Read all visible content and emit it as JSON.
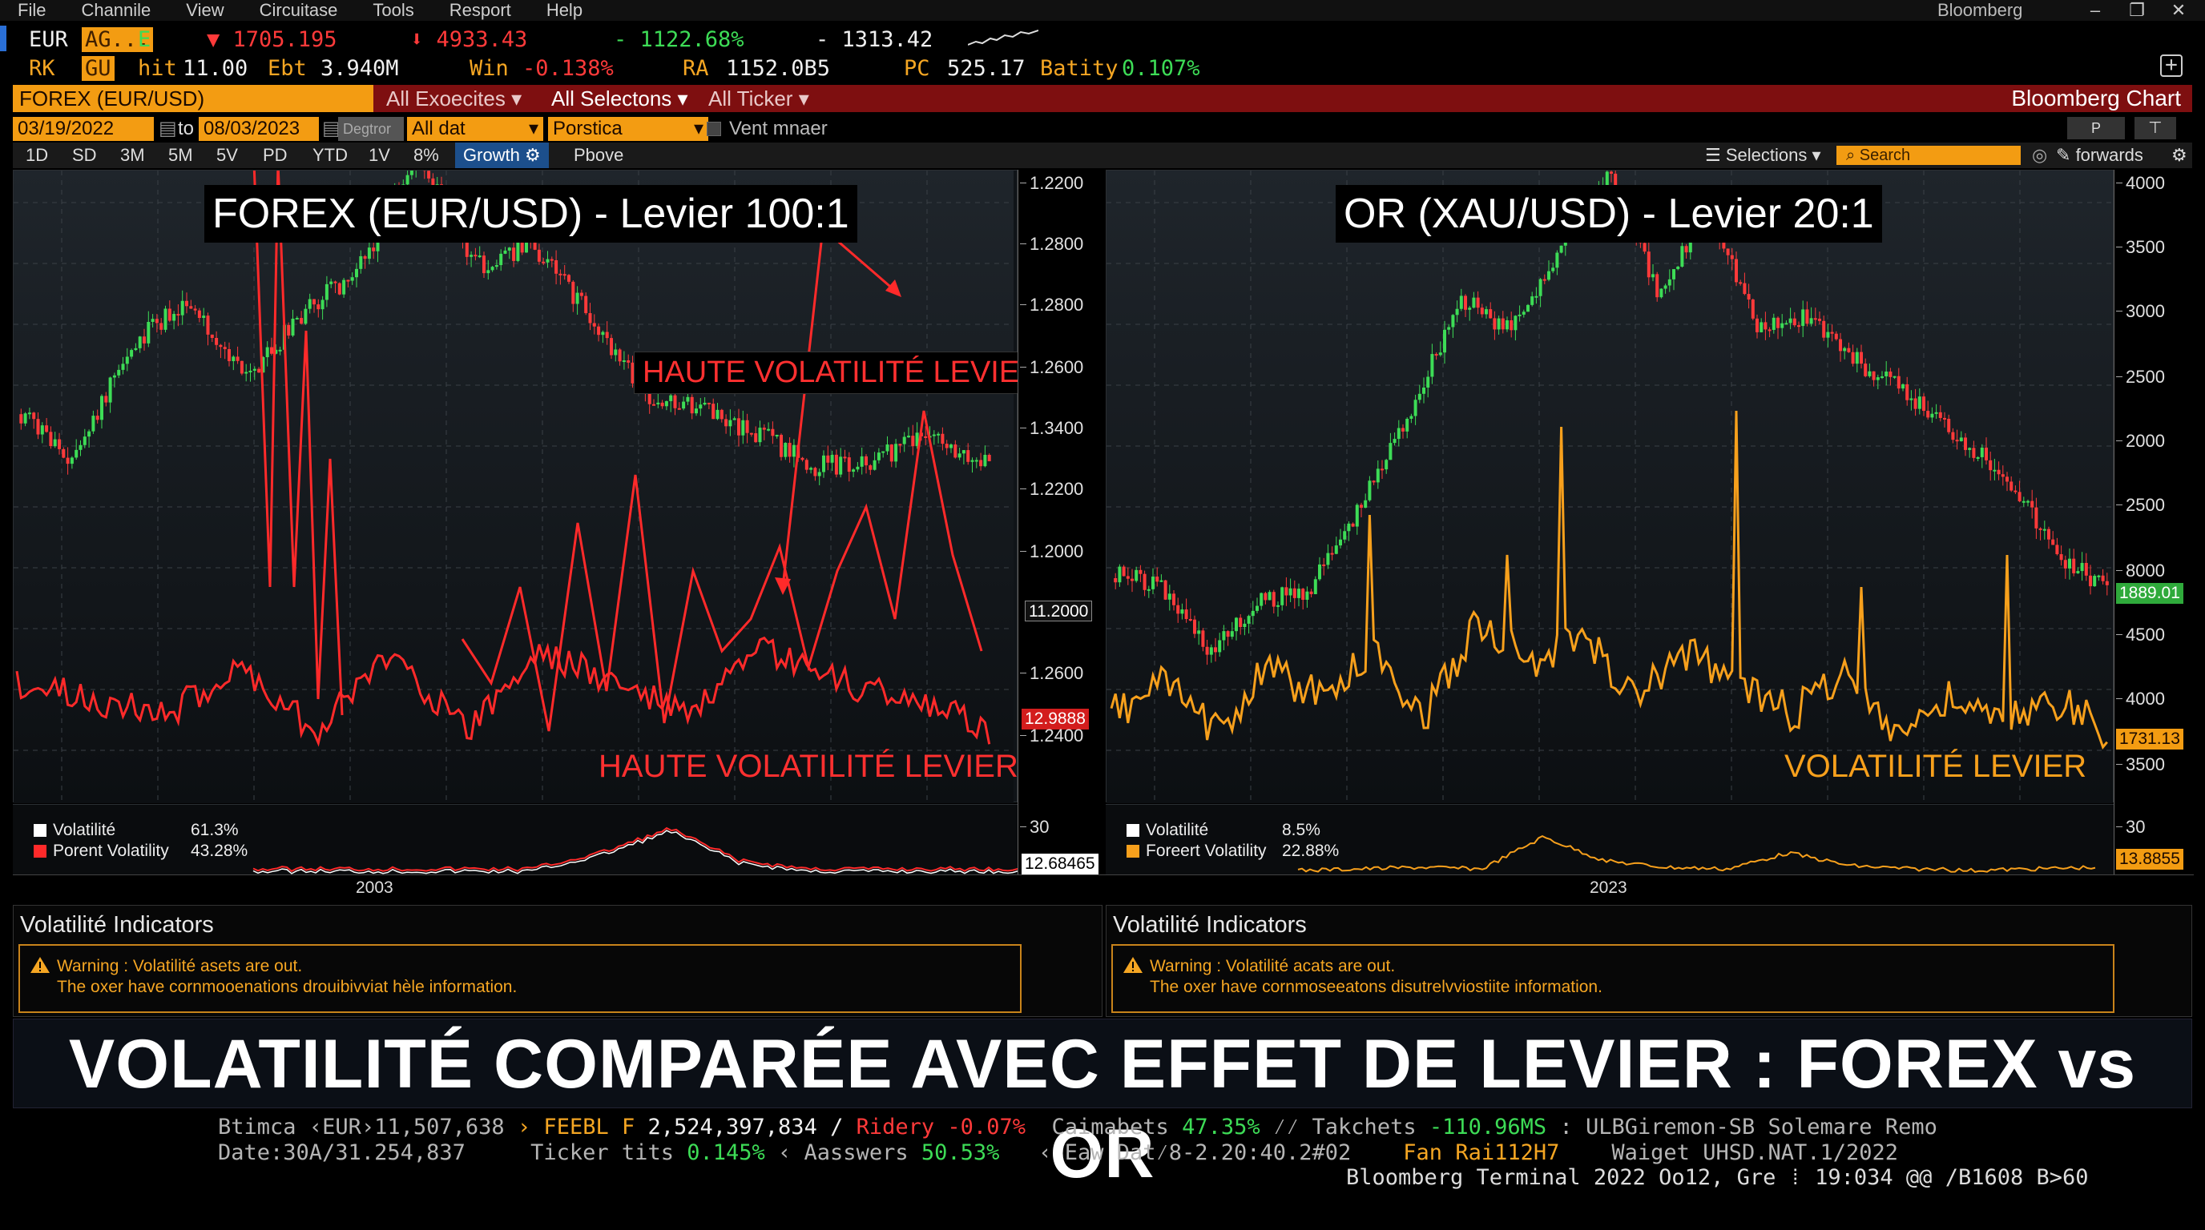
{
  "menu": [
    "File",
    "Channile",
    "View",
    "Circuitase",
    "Tools",
    "Resport",
    "Help"
  ],
  "app_name": "Bloomberg",
  "window_controls": [
    "–",
    "❐",
    "✕"
  ],
  "quote_row1": {
    "sym1": "EUR",
    "sym2": "AG...",
    "sym3": "E",
    "v1": "▼ 1705.195",
    "v2": "⬇ 4933.43",
    "v3": "- 1122.68%",
    "v4": "- 1313.42"
  },
  "quote_row2": {
    "sym1": "RK",
    "sym2": "GU",
    "hit_label": "hit",
    "hit_value": "11.00",
    "ebt_label": "Ebt",
    "ebt_value": "3.940M",
    "win_label": "Win",
    "win_value": "-0.138%",
    "ra_label": "RA",
    "ra_value": "1152.0B5",
    "pc_label": "PC",
    "pc_value": "525.17",
    "batity_label": "Batity",
    "batity_value": "0.107%"
  },
  "title_row": {
    "security": "FOREX (EUR/USD)",
    "dropdown1": "All Exoecites",
    "dropdown2": "All Selectons",
    "dropdown3": "All Ticker",
    "right_title": "Bloomberg Chart"
  },
  "date_row": {
    "from": "03/19/2022",
    "to_label": "to",
    "to": "08/03/2023",
    "btn1": "Degtror",
    "select1": "All dat",
    "select2": "Porstica",
    "checkbox_label": "Vent mnaer"
  },
  "periods": [
    "1D",
    "SD",
    "3M",
    "5M",
    "5V",
    "PD",
    "YTD",
    "1V",
    "8%"
  ],
  "growth_label": "Growth",
  "above_label": "Pbove",
  "selections_label": "Selections",
  "search_placeholder": "Search",
  "forwards_label": "forwards",
  "forex": {
    "title": "FOREX (EUR/USD) - Levier 100:1",
    "annot_top": "HAUTE VOLATILITÉ LEVIER",
    "annot_bottom": "HAUTE VOLATILITÉ LEVIER",
    "ticks": [
      "1.2200",
      "1.2800",
      "1.2800",
      "1.2600",
      "1.3400",
      "1.2200",
      "1.2000",
      "1.2600",
      "1.2400"
    ],
    "last_price": "11.2000",
    "vol_tag": "12.9888",
    "legend1_name": "Volatilité",
    "legend1_value": "61.3%",
    "legend2_name": "Porent Volatility",
    "legend2_value": "43.28%",
    "sub_tick": "30",
    "sub_tag": "12.68465",
    "year": "2003"
  },
  "gold": {
    "title": "OR (XAU/USD) - Levier 20:1",
    "annot_bottom": "VOLATILITÉ LEVIER",
    "ticks": [
      "4000",
      "3500",
      "3000",
      "2500",
      "2000",
      "2500",
      "8000",
      "4500",
      "4000",
      "3500"
    ],
    "last_price": "1889.01",
    "vol_tag": "1731.13",
    "legend1_name": "Volatilité",
    "legend1_value": "8.5%",
    "legend2_name": "Foreert Volatility",
    "legend2_value": "22.88%",
    "sub_tick": "30",
    "sub_tag": "13.8855",
    "year": "2023"
  },
  "indicators_left": {
    "title": "Volatilité Indicators",
    "line1": "Warning : Volatilité asets are out.",
    "line2": "The oxer have cornmooenations drouibivviat hèle information."
  },
  "indicators_right": {
    "title": "Volatilité Indicators",
    "line1": "Warning : Volatilité acats are out.",
    "line2": "The oxer have cornmoseeatons disutrelvviostiite information."
  },
  "banner": "VOLATILITÉ COMPARÉE AVEC EFFET DE LEVIER : FOREX vs OR",
  "ticker1": {
    "a_label": "Btimca",
    "a_value": "‹EUR›11,507,638",
    "b_label": "› FEEBL F",
    "b_value": "2,524,397,834 /",
    "c_label": "Ridery",
    "c_value": "-0.07%",
    "d_label": "Caimabets",
    "d_value": "47.35%",
    "e_label": "⁄⁄ Takchets",
    "e_value": "-110.96MS",
    "f": ": ULBGiremon-SB Solemare Remo"
  },
  "ticker2": {
    "a": "Date:30A/31.254,837",
    "b_label": "Ticker tits",
    "b_value": "0.145%",
    "c_label": "‹ Aasswers",
    "c_value": "50.53%",
    "d": "‹ Eaw Dat⁄8-2.20:40.2#02",
    "e": "Fan Rai112H7",
    "f": "Waiget UHSD.NAT.1/2022"
  },
  "ticker3": "Bloomberg Terminal 2022 Oo12, Gre ⁞ 19:034 @@ /B1608 B>60",
  "colors": {
    "amber": "#f39c12",
    "title_bar": "#7e0f10",
    "forex_line": "#ff2a2a",
    "gold_line": "#f7a01c",
    "candle_up": "#3ddc56",
    "candle_down": "#ff3a3a"
  }
}
